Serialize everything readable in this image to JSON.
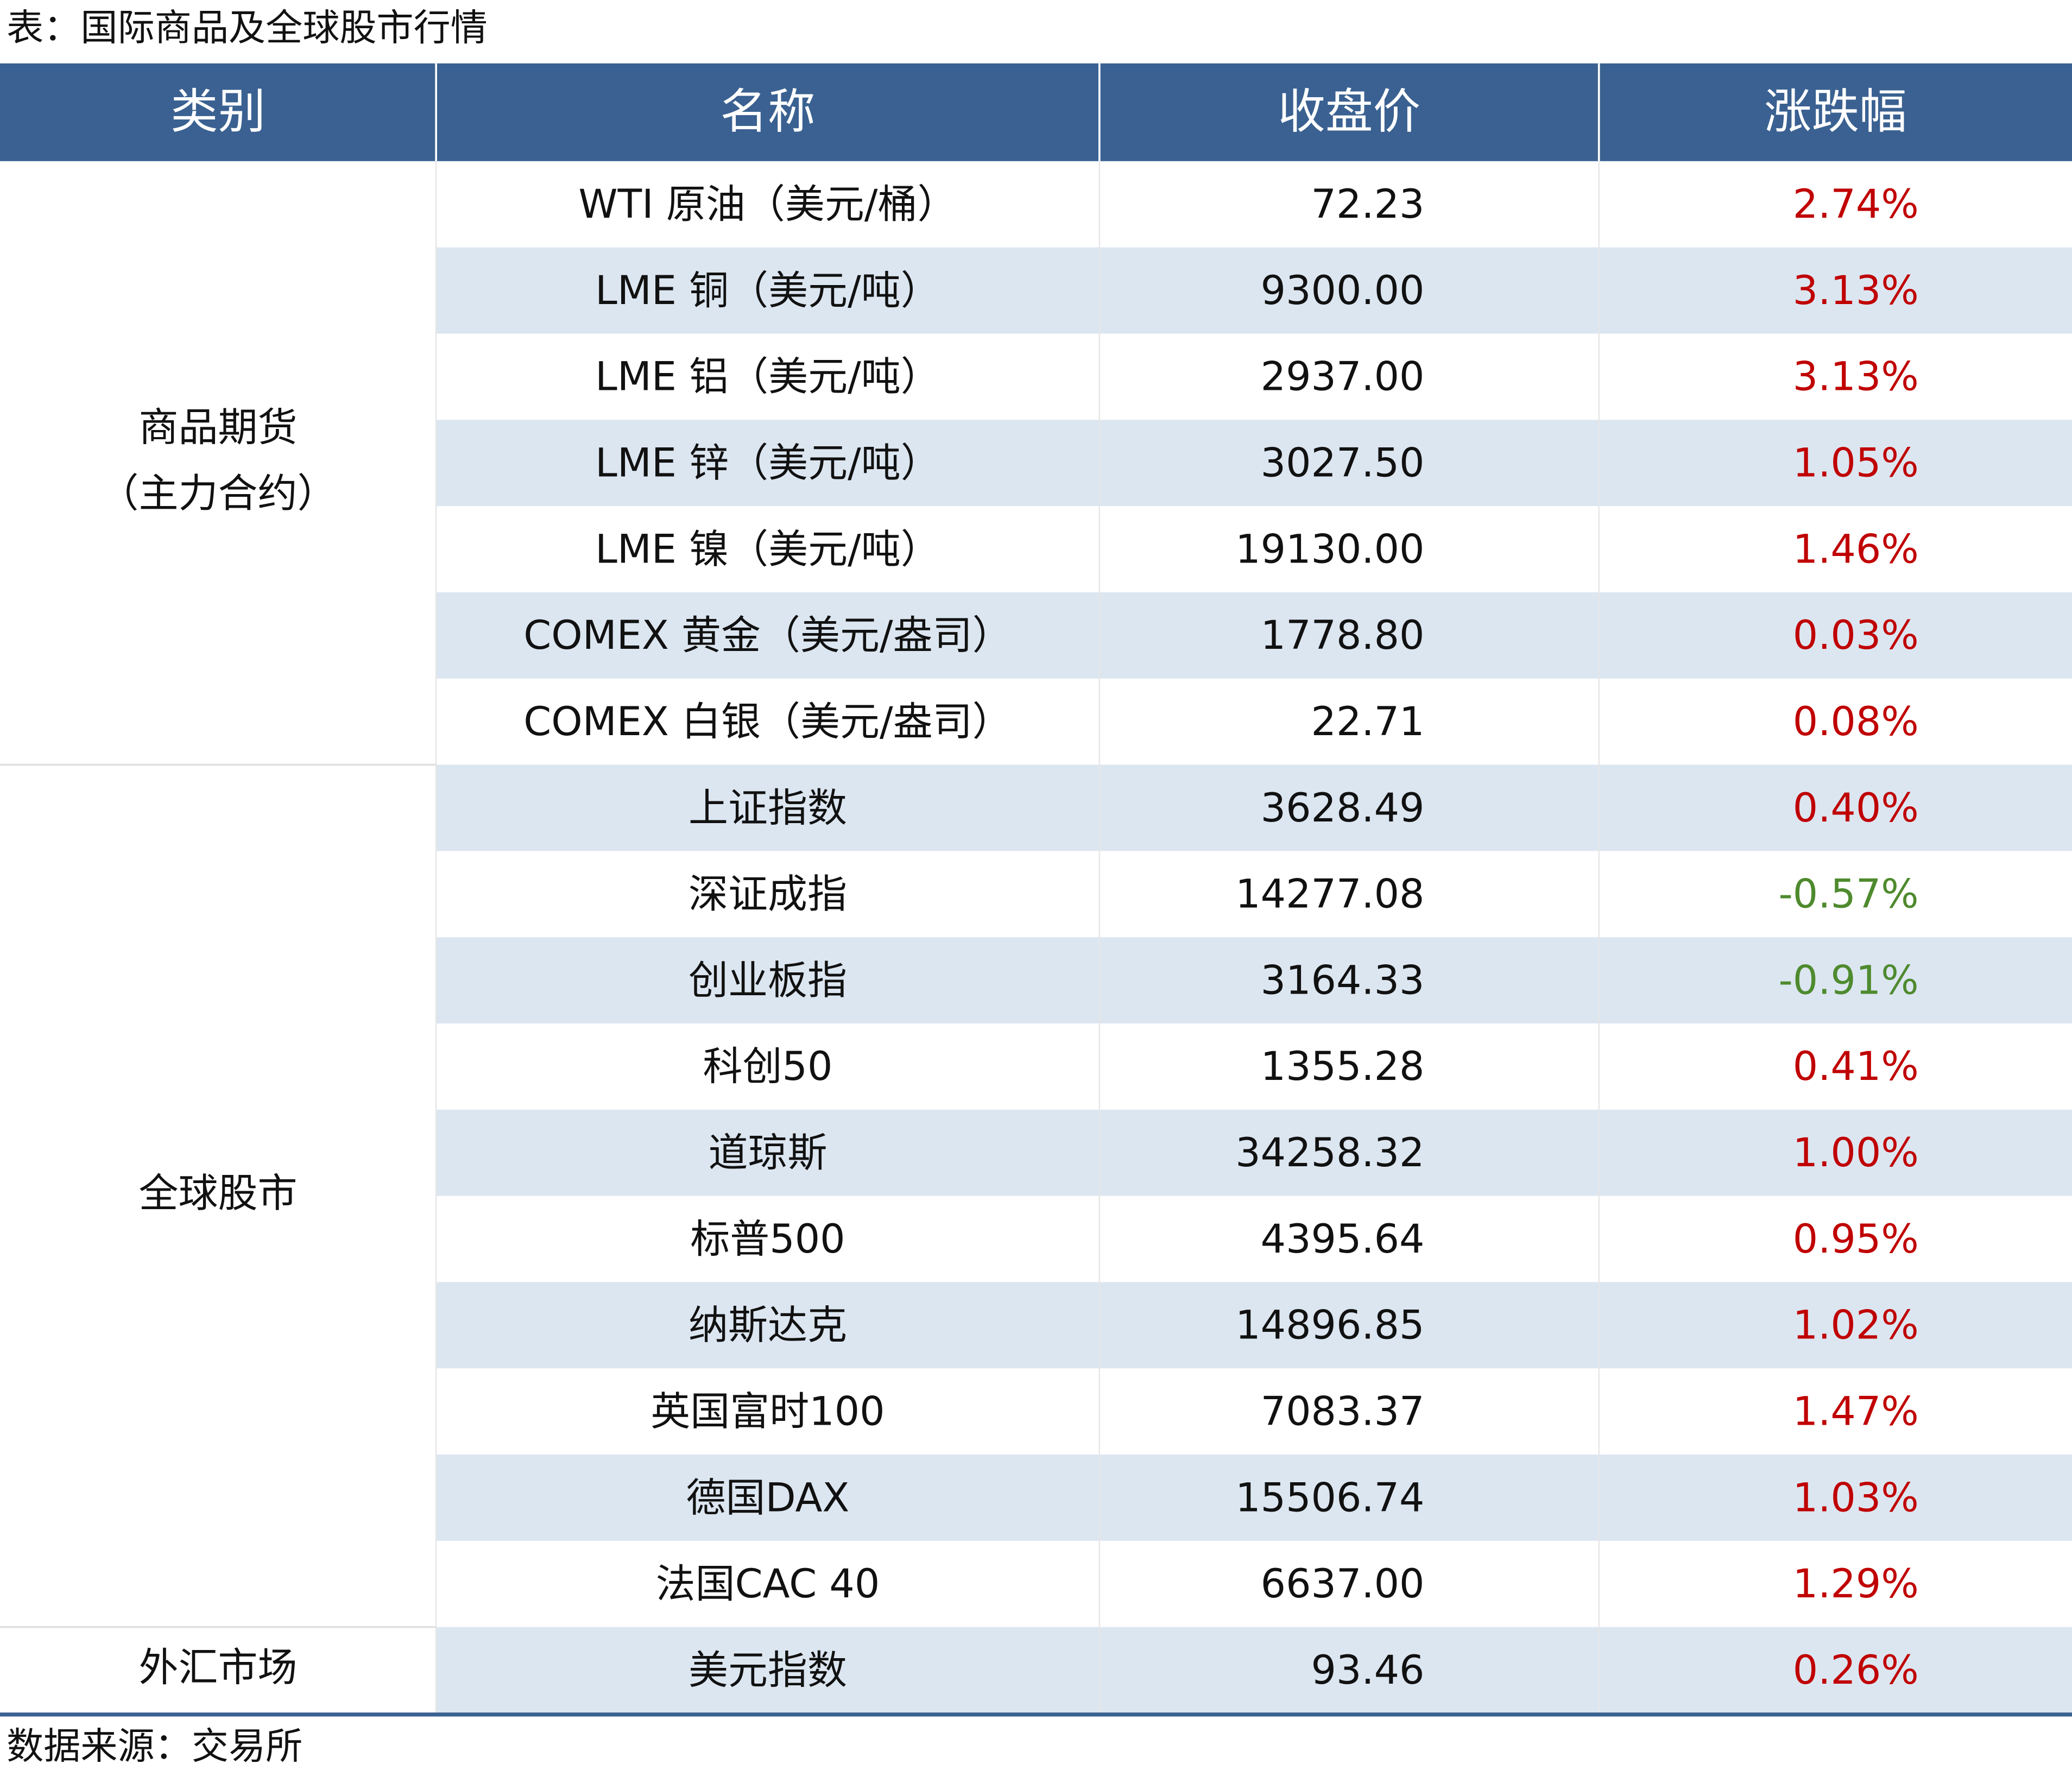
{
  "header": {
    "title": "表：国际商品及全球股市行情"
  },
  "table": {
    "columns": [
      "类别",
      "名称",
      "收盘价",
      "涨跌幅"
    ],
    "groups": [
      {
        "lines": [
          "商品期货",
          "（主力合约）"
        ],
        "rows": 7
      },
      {
        "lines": [
          "全球股市"
        ],
        "rows": 10
      },
      {
        "lines": [
          "外汇市场"
        ],
        "rows": 1
      }
    ],
    "rows": [
      [
        "WTI 原油（美元/桶）",
        "72.23",
        "2.74%"
      ],
      [
        "LME 铜（美元/吨）",
        "9300.00",
        "3.13%"
      ],
      [
        "LME 铝（美元/吨）",
        "2937.00",
        "3.13%"
      ],
      [
        "LME 锌（美元/吨）",
        "3027.50",
        "1.05%"
      ],
      [
        "LME 镍（美元/吨）",
        "19130.00",
        "1.46%"
      ],
      [
        "COMEX 黄金（美元/盎司）",
        "1778.80",
        "0.03%"
      ],
      [
        "COMEX 白银（美元/盎司）",
        "22.71",
        "0.08%"
      ],
      [
        "上证指数",
        "3628.49",
        "0.40%"
      ],
      [
        "深证成指",
        "14277.08",
        "-0.57%"
      ],
      [
        "创业板指",
        "3164.33",
        "-0.91%"
      ],
      [
        "科创50",
        "1355.28",
        "0.41%"
      ],
      [
        "道琼斯",
        "34258.32",
        "1.00%"
      ],
      [
        "标普500",
        "4395.64",
        "0.95%"
      ],
      [
        "纳斯达克",
        "14896.85",
        "1.02%"
      ],
      [
        "英国富时100",
        "7083.37",
        "1.47%"
      ],
      [
        "德国DAX",
        "15506.74",
        "1.03%"
      ],
      [
        "法国CAC 40",
        "6637.00",
        "1.29%"
      ],
      [
        "美元指数",
        "93.46",
        "0.26%"
      ]
    ]
  },
  "footer": {
    "source": "数据来源：交易所"
  }
}
